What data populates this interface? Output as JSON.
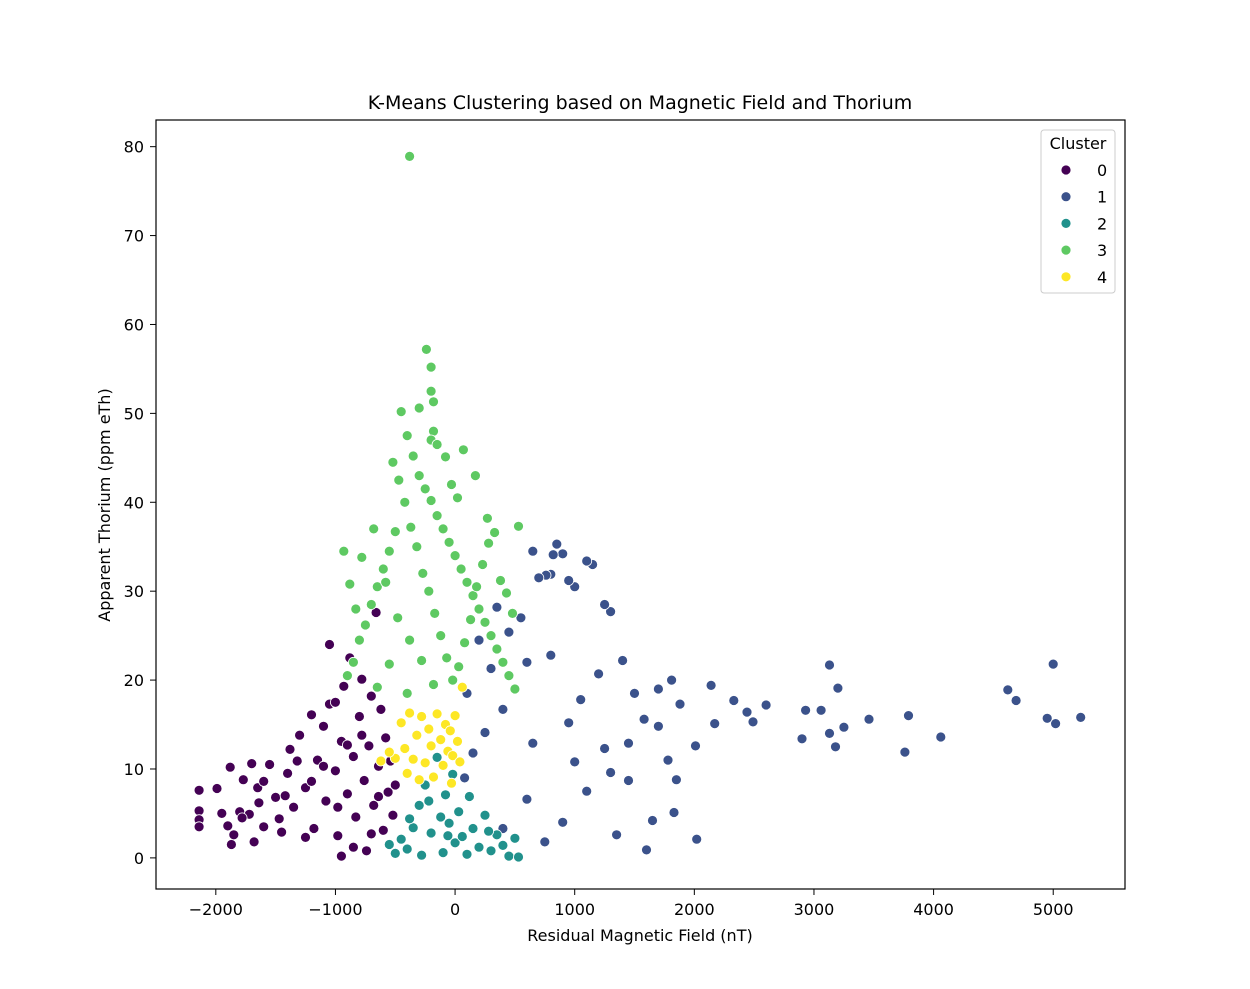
{
  "chart_data": {
    "type": "scatter",
    "title": "K-Means Clustering based on Magnetic Field and Thorium",
    "xlabel": "Residual Magnetic Field (nT)",
    "ylabel": "Apparent Thorium (ppm eTh)",
    "xlim": [
      -2500,
      5600
    ],
    "ylim": [
      -3.5,
      83
    ],
    "xticks": [
      -2000,
      -1000,
      0,
      1000,
      2000,
      3000,
      4000,
      5000
    ],
    "xtick_labels": [
      "−2000",
      "−1000",
      "0",
      "1000",
      "2000",
      "3000",
      "4000",
      "5000"
    ],
    "yticks": [
      0,
      10,
      20,
      30,
      40,
      50,
      60,
      70,
      80
    ],
    "ytick_labels": [
      "0",
      "10",
      "20",
      "30",
      "40",
      "50",
      "60",
      "70",
      "80"
    ],
    "grid": false,
    "legend": {
      "title": "Cluster",
      "position": "top-right",
      "entries": [
        "0",
        "1",
        "2",
        "3",
        "4"
      ]
    },
    "series": [
      {
        "name": "0",
        "color": "#440154",
        "points": [
          [
            -2140,
            7.6
          ],
          [
            -2140,
            5.3
          ],
          [
            -2140,
            4.3
          ],
          [
            -2140,
            3.5
          ],
          [
            -1990,
            7.8
          ],
          [
            -1900,
            3.6
          ],
          [
            -1880,
            10.2
          ],
          [
            -1870,
            1.5
          ],
          [
            -1850,
            2.6
          ],
          [
            -1800,
            5.2
          ],
          [
            -1770,
            8.8
          ],
          [
            -1720,
            4.9
          ],
          [
            -1700,
            10.6
          ],
          [
            -1680,
            1.8
          ],
          [
            -1650,
            7.9
          ],
          [
            -1600,
            3.5
          ],
          [
            -1550,
            10.5
          ],
          [
            -1500,
            6.8
          ],
          [
            -1450,
            2.9
          ],
          [
            -1400,
            9.5
          ],
          [
            -1380,
            12.2
          ],
          [
            -1350,
            5.7
          ],
          [
            -1300,
            13.8
          ],
          [
            -1250,
            7.9
          ],
          [
            -1200,
            16.1
          ],
          [
            -1180,
            3.3
          ],
          [
            -1150,
            11.0
          ],
          [
            -1100,
            14.8
          ],
          [
            -1080,
            6.4
          ],
          [
            -1050,
            17.3
          ],
          [
            -1000,
            9.8
          ],
          [
            -980,
            2.5
          ],
          [
            -950,
            13.1
          ],
          [
            -930,
            19.3
          ],
          [
            -900,
            7.2
          ],
          [
            -880,
            22.5
          ],
          [
            -850,
            11.4
          ],
          [
            -830,
            4.6
          ],
          [
            -800,
            15.9
          ],
          [
            -780,
            20.1
          ],
          [
            -760,
            8.7
          ],
          [
            -740,
            0.8
          ],
          [
            -720,
            12.6
          ],
          [
            -700,
            18.2
          ],
          [
            -680,
            5.9
          ],
          [
            -660,
            27.6
          ],
          [
            -640,
            10.3
          ],
          [
            -620,
            16.7
          ],
          [
            -600,
            3.1
          ],
          [
            -580,
            13.5
          ],
          [
            -560,
            7.4
          ],
          [
            -540,
            10.9
          ],
          [
            -520,
            4.8
          ],
          [
            -500,
            8.2
          ],
          [
            -980,
            5.7
          ],
          [
            -1200,
            8.6
          ],
          [
            -1320,
            10.9
          ],
          [
            -1420,
            7.0
          ],
          [
            -1100,
            10.3
          ],
          [
            -900,
            12.7
          ],
          [
            -1000,
            17.5
          ],
          [
            -850,
            1.2
          ],
          [
            -950,
            0.2
          ],
          [
            -1050,
            24.0
          ],
          [
            -1600,
            8.6
          ],
          [
            -1780,
            4.5
          ],
          [
            -1950,
            5.0
          ],
          [
            -1640,
            6.2
          ],
          [
            -1470,
            4.4
          ],
          [
            -1250,
            2.3
          ],
          [
            -700,
            2.7
          ],
          [
            -640,
            6.9
          ],
          [
            -780,
            13.8
          ]
        ]
      },
      {
        "name": "1",
        "color": "#3b528b",
        "points": [
          [
            5230,
            15.8
          ],
          [
            5000,
            21.8
          ],
          [
            5020,
            15.1
          ],
          [
            4950,
            15.7
          ],
          [
            4690,
            17.7
          ],
          [
            4620,
            18.9
          ],
          [
            4060,
            13.6
          ],
          [
            3790,
            16.0
          ],
          [
            3760,
            11.9
          ],
          [
            3460,
            15.6
          ],
          [
            3250,
            14.7
          ],
          [
            3200,
            19.1
          ],
          [
            3180,
            12.5
          ],
          [
            3130,
            21.7
          ],
          [
            3130,
            14.0
          ],
          [
            3060,
            16.6
          ],
          [
            2930,
            16.6
          ],
          [
            2900,
            13.4
          ],
          [
            2600,
            17.2
          ],
          [
            2490,
            15.3
          ],
          [
            2440,
            16.4
          ],
          [
            2330,
            17.7
          ],
          [
            2170,
            15.1
          ],
          [
            2140,
            19.4
          ],
          [
            2020,
            2.1
          ],
          [
            2010,
            12.6
          ],
          [
            1880,
            17.3
          ],
          [
            1810,
            20.0
          ],
          [
            1830,
            5.1
          ],
          [
            1780,
            11.0
          ],
          [
            1700,
            19.0
          ],
          [
            1650,
            4.2
          ],
          [
            1600,
            0.9
          ],
          [
            1580,
            15.6
          ],
          [
            1500,
            18.5
          ],
          [
            1450,
            8.7
          ],
          [
            1400,
            22.2
          ],
          [
            1350,
            2.6
          ],
          [
            1300,
            27.7
          ],
          [
            1250,
            28.5
          ],
          [
            1250,
            12.3
          ],
          [
            1200,
            20.7
          ],
          [
            1150,
            33.0
          ],
          [
            1100,
            33.4
          ],
          [
            1050,
            17.8
          ],
          [
            1000,
            30.5
          ],
          [
            950,
            31.2
          ],
          [
            900,
            34.2
          ],
          [
            850,
            35.3
          ],
          [
            820,
            34.1
          ],
          [
            800,
            31.9
          ],
          [
            760,
            31.8
          ],
          [
            700,
            31.5
          ],
          [
            650,
            34.5
          ],
          [
            600,
            22.0
          ],
          [
            550,
            27.0
          ],
          [
            500,
            19.0
          ],
          [
            450,
            25.4
          ],
          [
            400,
            16.7
          ],
          [
            350,
            28.2
          ],
          [
            300,
            21.3
          ],
          [
            250,
            14.1
          ],
          [
            200,
            24.5
          ],
          [
            150,
            11.8
          ],
          [
            100,
            18.5
          ],
          [
            80,
            9.0
          ],
          [
            1100,
            7.5
          ],
          [
            900,
            4.0
          ],
          [
            750,
            1.8
          ],
          [
            650,
            12.9
          ],
          [
            1300,
            9.6
          ],
          [
            1450,
            12.9
          ],
          [
            1700,
            14.8
          ],
          [
            1850,
            8.8
          ],
          [
            950,
            15.2
          ],
          [
            800,
            22.8
          ],
          [
            600,
            6.6
          ],
          [
            400,
            3.3
          ],
          [
            1000,
            10.8
          ]
        ]
      },
      {
        "name": "2",
        "color": "#21918c",
        "points": [
          [
            -550,
            1.5
          ],
          [
            -500,
            0.5
          ],
          [
            -450,
            2.1
          ],
          [
            -400,
            1.0
          ],
          [
            -350,
            3.4
          ],
          [
            -300,
            5.9
          ],
          [
            -280,
            0.3
          ],
          [
            -250,
            8.2
          ],
          [
            -200,
            2.8
          ],
          [
            -150,
            11.3
          ],
          [
            -120,
            4.6
          ],
          [
            -100,
            0.6
          ],
          [
            -80,
            7.1
          ],
          [
            -50,
            3.9
          ],
          [
            -20,
            9.4
          ],
          [
            0,
            1.7
          ],
          [
            30,
            5.2
          ],
          [
            60,
            2.4
          ],
          [
            100,
            0.4
          ],
          [
            150,
            3.3
          ],
          [
            200,
            1.2
          ],
          [
            250,
            4.8
          ],
          [
            300,
            0.8
          ],
          [
            350,
            2.6
          ],
          [
            400,
            1.4
          ],
          [
            450,
            0.2
          ],
          [
            500,
            2.2
          ],
          [
            530,
            0.1
          ],
          [
            -380,
            4.4
          ],
          [
            -220,
            6.4
          ],
          [
            -60,
            2.5
          ],
          [
            120,
            6.9
          ],
          [
            280,
            3.0
          ]
        ]
      },
      {
        "name": "3",
        "color": "#5ec962",
        "points": [
          [
            -380,
            78.9
          ],
          [
            -240,
            57.2
          ],
          [
            -200,
            55.2
          ],
          [
            -200,
            52.5
          ],
          [
            -180,
            51.3
          ],
          [
            -180,
            48.0
          ],
          [
            -200,
            47.0
          ],
          [
            -150,
            46.5
          ],
          [
            -300,
            50.6
          ],
          [
            -450,
            50.2
          ],
          [
            -400,
            47.5
          ],
          [
            -350,
            45.2
          ],
          [
            -300,
            43.0
          ],
          [
            -250,
            41.5
          ],
          [
            -200,
            40.2
          ],
          [
            -150,
            38.5
          ],
          [
            -100,
            37.0
          ],
          [
            -50,
            35.5
          ],
          [
            0,
            34.0
          ],
          [
            50,
            32.5
          ],
          [
            100,
            31.0
          ],
          [
            150,
            29.5
          ],
          [
            200,
            28.0
          ],
          [
            250,
            26.5
          ],
          [
            300,
            25.0
          ],
          [
            350,
            23.5
          ],
          [
            400,
            22.0
          ],
          [
            450,
            20.5
          ],
          [
            500,
            19.0
          ],
          [
            -500,
            36.7
          ],
          [
            -550,
            34.5
          ],
          [
            -600,
            32.5
          ],
          [
            -650,
            30.5
          ],
          [
            -700,
            28.5
          ],
          [
            -750,
            26.2
          ],
          [
            -800,
            24.5
          ],
          [
            -850,
            22.0
          ],
          [
            -900,
            20.5
          ],
          [
            -520,
            44.5
          ],
          [
            -470,
            42.5
          ],
          [
            -420,
            40.0
          ],
          [
            -370,
            37.2
          ],
          [
            -320,
            35.0
          ],
          [
            -270,
            32.0
          ],
          [
            -220,
            30.0
          ],
          [
            -170,
            27.5
          ],
          [
            -120,
            25.0
          ],
          [
            -70,
            22.5
          ],
          [
            -20,
            20.0
          ],
          [
            30,
            21.5
          ],
          [
            80,
            24.2
          ],
          [
            130,
            26.8
          ],
          [
            180,
            30.5
          ],
          [
            230,
            33.0
          ],
          [
            280,
            35.4
          ],
          [
            330,
            36.6
          ],
          [
            380,
            31.2
          ],
          [
            430,
            29.8
          ],
          [
            480,
            27.5
          ],
          [
            530,
            37.3
          ],
          [
            -930,
            34.5
          ],
          [
            -880,
            30.8
          ],
          [
            -830,
            28.0
          ],
          [
            -780,
            33.8
          ],
          [
            -680,
            37.0
          ],
          [
            -580,
            31.0
          ],
          [
            -480,
            27.0
          ],
          [
            -380,
            24.5
          ],
          [
            -280,
            22.2
          ],
          [
            -180,
            19.5
          ],
          [
            -80,
            45.1
          ],
          [
            -30,
            42.0
          ],
          [
            20,
            40.5
          ],
          [
            70,
            45.9
          ],
          [
            170,
            43.0
          ],
          [
            270,
            38.2
          ],
          [
            -400,
            18.5
          ],
          [
            -550,
            21.8
          ],
          [
            -650,
            19.2
          ]
        ]
      },
      {
        "name": "4",
        "color": "#fde725",
        "points": [
          [
            -450,
            15.2
          ],
          [
            -420,
            12.3
          ],
          [
            -400,
            9.5
          ],
          [
            -380,
            16.3
          ],
          [
            -350,
            11.1
          ],
          [
            -320,
            13.8
          ],
          [
            -300,
            8.8
          ],
          [
            -280,
            15.9
          ],
          [
            -250,
            10.7
          ],
          [
            -220,
            14.5
          ],
          [
            -200,
            12.6
          ],
          [
            -180,
            9.1
          ],
          [
            -150,
            16.2
          ],
          [
            -120,
            13.3
          ],
          [
            -100,
            10.4
          ],
          [
            -80,
            15.0
          ],
          [
            -60,
            12.0
          ],
          [
            -40,
            14.3
          ],
          [
            -20,
            11.5
          ],
          [
            0,
            16.0
          ],
          [
            20,
            13.1
          ],
          [
            40,
            10.8
          ],
          [
            60,
            19.2
          ],
          [
            -500,
            11.2
          ],
          [
            -550,
            11.9
          ],
          [
            -620,
            10.9
          ],
          [
            -30,
            8.4
          ]
        ]
      }
    ]
  }
}
